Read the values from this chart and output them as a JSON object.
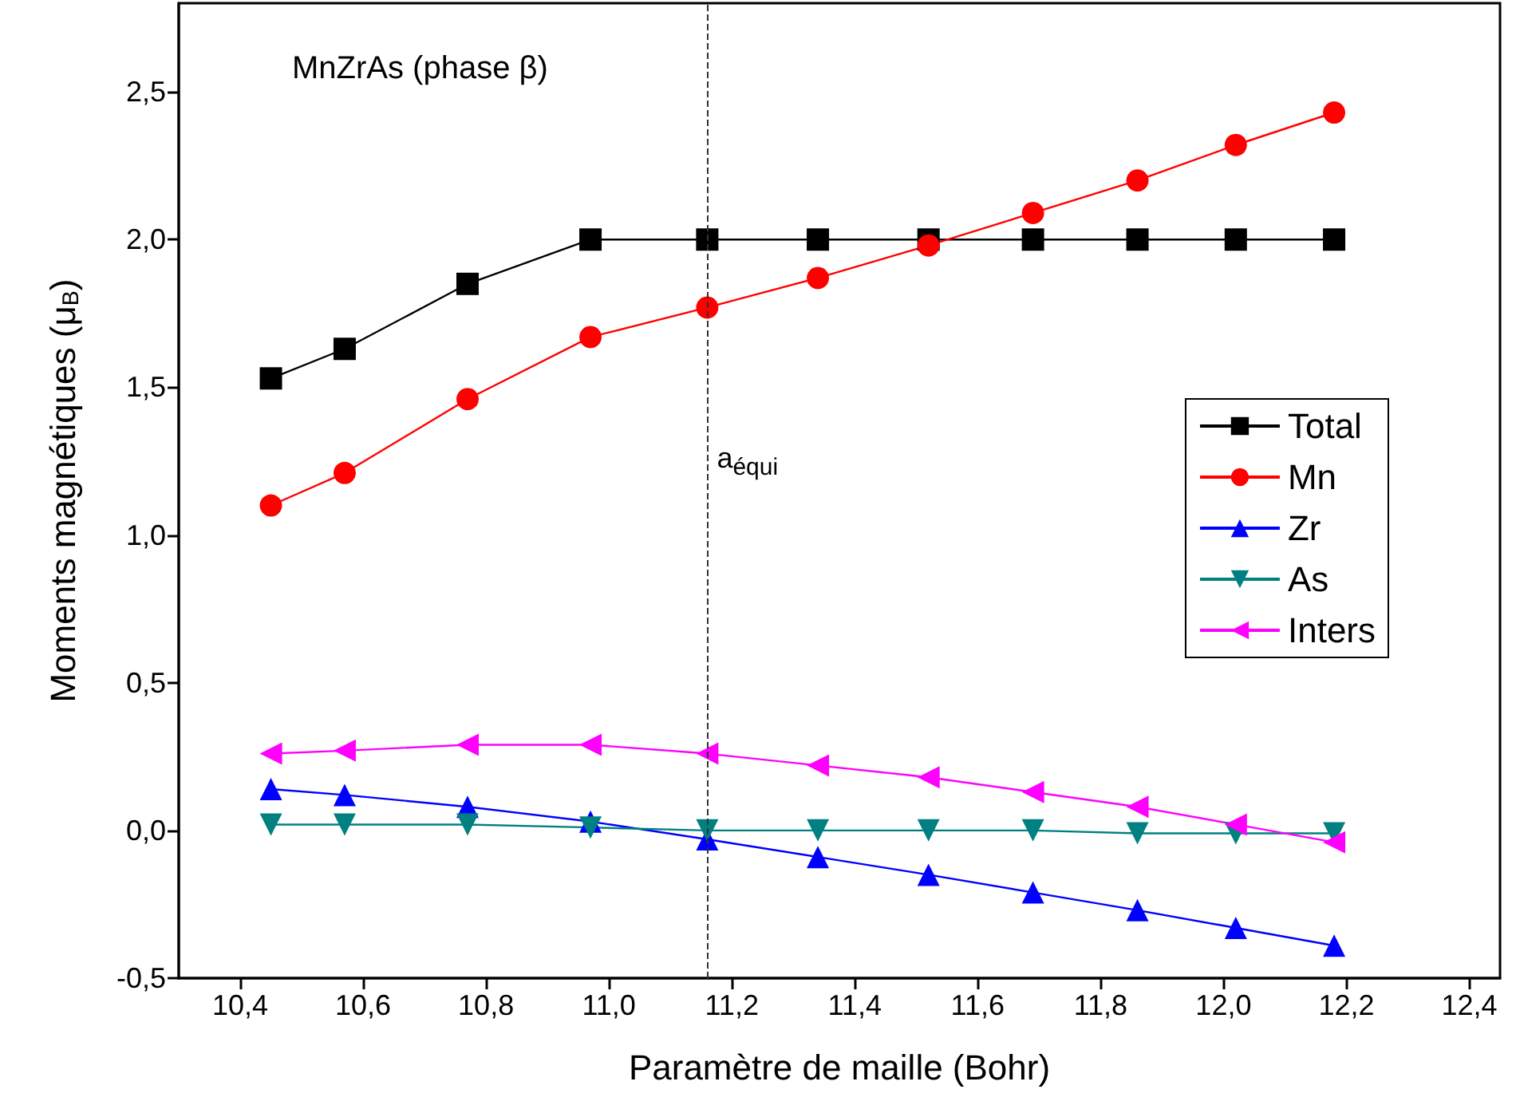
{
  "chart_data": {
    "type": "line",
    "xlabel": "Paramètre de maille (Bohr)",
    "ylabel": "Moments magnétiques (μ$_{B}$)",
    "annotations": [
      {
        "text": "MnZrAs (phase β)"
      }
    ],
    "x": [
      10.45,
      10.57,
      10.77,
      10.97,
      11.16,
      11.34,
      11.52,
      11.69,
      11.86,
      12.02,
      12.18
    ],
    "series": [
      {
        "name": "Total",
        "color": "#000000",
        "marker": "square",
        "values": [
          1.53,
          1.63,
          1.85,
          2.0,
          2.0,
          2.0,
          2.0,
          2.0,
          2.0,
          2.0,
          2.0
        ]
      },
      {
        "name": "Mn",
        "color": "#ff0000",
        "marker": "circle",
        "values": [
          1.1,
          1.21,
          1.46,
          1.67,
          1.77,
          1.87,
          1.98,
          2.09,
          2.2,
          2.32,
          2.43
        ]
      },
      {
        "name": "Zr",
        "color": "#0000ff",
        "marker": "triangle",
        "values": [
          0.14,
          0.12,
          0.08,
          0.03,
          -0.03,
          -0.09,
          -0.15,
          -0.21,
          -0.27,
          -0.33,
          -0.39
        ]
      },
      {
        "name": "As",
        "color": "#008080",
        "marker": "triangle-down",
        "values": [
          0.02,
          0.02,
          0.02,
          0.01,
          0.0,
          0.0,
          0.0,
          0.0,
          -0.01,
          -0.01,
          -0.01
        ]
      },
      {
        "name": "Inters",
        "color": "#ff00ff",
        "marker": "triangle-left",
        "values": [
          0.26,
          0.27,
          0.29,
          0.29,
          0.26,
          0.22,
          0.18,
          0.13,
          0.08,
          0.02,
          -0.04
        ]
      }
    ],
    "xlim": [
      10.3,
      12.45
    ],
    "xticks": [
      {
        "value": 10.4,
        "label": "10,4"
      },
      {
        "value": 10.6,
        "label": "10,6"
      },
      {
        "value": 10.8,
        "label": "10,8"
      },
      {
        "value": 11.0,
        "label": "11,0"
      },
      {
        "value": 11.2,
        "label": "11,2"
      },
      {
        "value": 11.4,
        "label": "11,4"
      },
      {
        "value": 11.6,
        "label": "11,6"
      },
      {
        "value": 11.8,
        "label": "11,8"
      },
      {
        "value": 12.0,
        "label": "12,0"
      },
      {
        "value": 12.2,
        "label": "12,2"
      },
      {
        "value": 12.4,
        "label": "12,4"
      }
    ],
    "ylim": [
      -0.5,
      2.8
    ],
    "yticks": [
      {
        "value": -0.5,
        "label": "-0,5"
      },
      {
        "value": 0.0,
        "label": "0,0"
      },
      {
        "value": 0.5,
        "label": "0,5"
      },
      {
        "value": 1.0,
        "label": "1,0"
      },
      {
        "value": 1.5,
        "label": "1,5"
      },
      {
        "value": 2.0,
        "label": "2,0"
      },
      {
        "value": 2.5,
        "label": "2,5"
      }
    ],
    "ref_lines": [
      {
        "axis": "x",
        "value": 11.16,
        "label": "a$_{équi}$",
        "color": "#333333",
        "line_style": "dashed"
      }
    ],
    "grid": false,
    "legend": "right",
    "line_style": "solid"
  }
}
